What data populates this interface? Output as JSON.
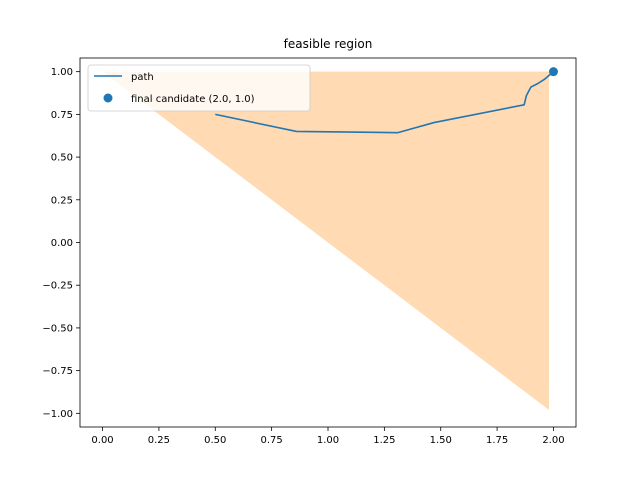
{
  "chart_data": {
    "type": "line",
    "title": "feasible region",
    "xlabel": "",
    "ylabel": "",
    "xlim": [
      -0.1,
      2.1
    ],
    "ylim": [
      -1.08,
      1.08
    ],
    "xticks": [
      0.0,
      0.25,
      0.5,
      0.75,
      1.0,
      1.25,
      1.5,
      1.75,
      2.0
    ],
    "xtick_labels": [
      "0.00",
      "0.25",
      "0.50",
      "0.75",
      "1.00",
      "1.25",
      "1.50",
      "1.75",
      "2.00"
    ],
    "yticks": [
      -1.0,
      -0.75,
      -0.5,
      -0.25,
      0.0,
      0.25,
      0.5,
      0.75,
      1.0
    ],
    "ytick_labels": [
      "−1.00",
      "−0.75",
      "−0.50",
      "−0.25",
      "0.00",
      "0.25",
      "0.50",
      "0.75",
      "1.00"
    ],
    "grid": false,
    "legend_position": "top-left",
    "feasible_region": {
      "x": [
        0.0,
        1.98,
        1.98
      ],
      "y": [
        1.0,
        1.0,
        -0.98
      ],
      "color": "#ffdab3"
    },
    "series": [
      {
        "name": "path",
        "kind": "line",
        "color": "#1f77b4",
        "x": [
          0.5,
          0.86,
          1.31,
          1.47,
          1.87,
          1.88,
          1.9,
          1.93,
          1.96,
          2.0
        ],
        "y": [
          0.75,
          0.65,
          0.643,
          0.702,
          0.806,
          0.86,
          0.91,
          0.93,
          0.955,
          1.0
        ]
      },
      {
        "name": "final candidate (2.0, 1.0)",
        "kind": "scatter",
        "color": "#1f77b4",
        "x": [
          2.0
        ],
        "y": [
          1.0
        ]
      }
    ]
  }
}
